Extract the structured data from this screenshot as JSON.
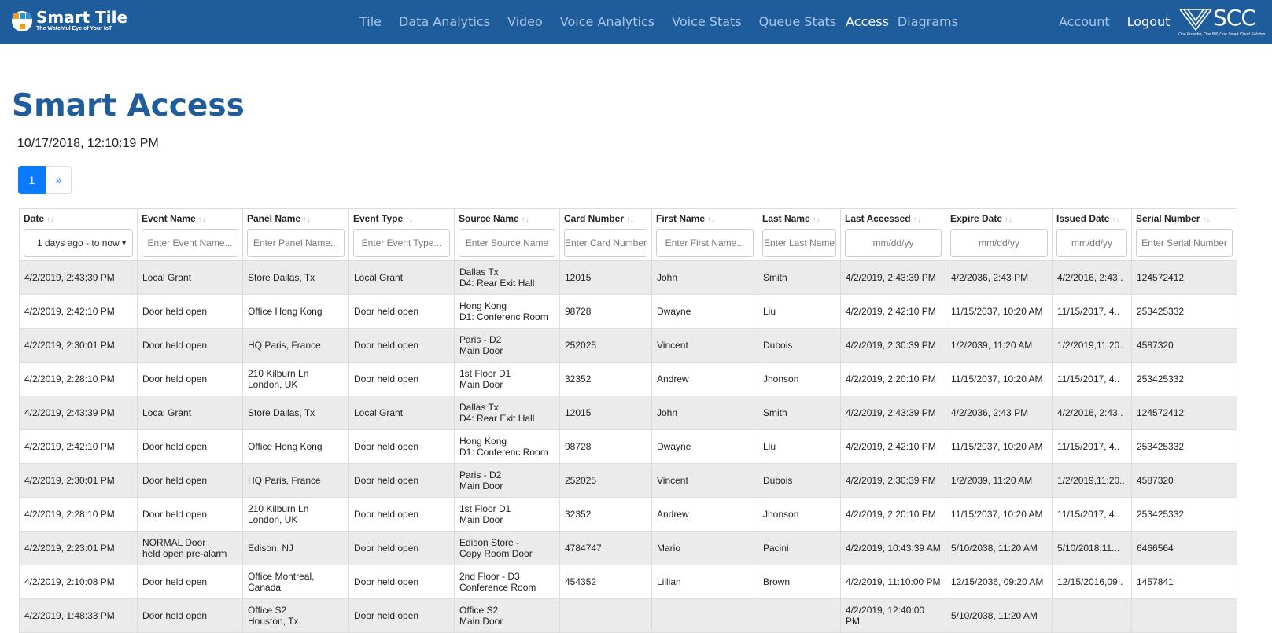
{
  "brand": {
    "name": "Smart Tile",
    "tagline": "The Watchful Eye of Your IoT"
  },
  "nav": {
    "links": [
      "Tile",
      "Data Analytics",
      "Video",
      "Voice Analytics",
      "Voice Stats",
      "Queue Stats",
      "Access",
      "Diagrams"
    ],
    "active": "Access",
    "account": "Account",
    "logout": "Logout"
  },
  "scc": {
    "name": "SCC",
    "tagline": "One Provider, One Bill, One Smart Cloud Solution"
  },
  "colors": {
    "nav_bg": "#1f5c9c",
    "title": "#1f5c9c",
    "page_active": "#0a7bff"
  },
  "page": {
    "title": "Smart Access",
    "timestamp": "10/17/2018, 12:10:19 PM"
  },
  "pagination": {
    "current": "1",
    "next": "»"
  },
  "table": {
    "columns": [
      "Date",
      "Event Name",
      "Panel Name",
      "Event Type",
      "Source Name",
      "Card Number",
      "First Name",
      "Last Name",
      "Last Accessed",
      "Expire Date",
      "Issued Date",
      "Serial Number"
    ],
    "filters": [
      "1 days ago - to now",
      "Enter Event Name...",
      "Enter Panel Name...",
      "Enter Event Type...",
      "Enter Source Name",
      "Enter Card Number",
      "Enter First Name...",
      "Enter Last Name",
      "mm/dd/yy",
      "mm/dd/yy",
      "mm/dd/yy",
      "Enter Serial Number"
    ],
    "rows": [
      [
        "4/2/2019, 2:43:39 PM",
        "Local Grant",
        "Store Dallas, Tx",
        "Local Grant",
        "Dallas Tx\nD4: Rear Exit Hall",
        "12015",
        "John",
        "Smith",
        "4/2/2019, 2:43:39 PM",
        "4/2/2036, 2:43 PM",
        "4/2/2016, 2:43..",
        "124572412"
      ],
      [
        "4/2/2019, 2:42:10 PM",
        "Door held open",
        "Office Hong Kong",
        "Door held open",
        "Hong Kong\nD1: Conferenc Room",
        "98728",
        "Dwayne",
        "Liu",
        "4/2/2019, 2:42:10 PM",
        "11/15/2037, 10:20 AM",
        "11/15/2017, 4..",
        "253425332"
      ],
      [
        "4/2/2019, 2:30:01 PM",
        "Door held open",
        "HQ Paris, France",
        "Door held open",
        "Paris - D2\nMain Door",
        "252025",
        "Vincent",
        "Dubois",
        "4/2/2019, 2:30:39 PM",
        "1/2/2039, 11:20 AM",
        "1/2/2019,11:20..",
        "4587320"
      ],
      [
        "4/2/2019, 2:28:10 PM",
        "Door held open",
        "210 Kilburn Ln\nLondon, UK",
        "Door held open",
        "1st Floor D1\nMain Door",
        "32352",
        "Andrew",
        "Jhonson",
        "4/2/2019, 2:20:10 PM",
        "11/15/2037, 10:20 AM",
        "11/15/2017, 4..",
        "253425332"
      ],
      [
        "4/2/2019, 2:43:39 PM",
        "Local Grant",
        "Store Dallas, Tx",
        "Local Grant",
        "Dallas Tx\nD4: Rear Exit Hall",
        "12015",
        "John",
        "Smith",
        "4/2/2019, 2:43:39 PM",
        "4/2/2036, 2:43 PM",
        "4/2/2016, 2:43..",
        "124572412"
      ],
      [
        "4/2/2019, 2:42:10 PM",
        "Door held open",
        "Office Hong Kong",
        "Door held open",
        "Hong Kong\nD1: Conferenc Room",
        "98728",
        "Dwayne",
        "Liu",
        "4/2/2019, 2:42:10 PM",
        "11/15/2037, 10:20 AM",
        "11/15/2017, 4..",
        "253425332"
      ],
      [
        "4/2/2019, 2:30:01 PM",
        "Door held open",
        "HQ Paris, France",
        "Door held open",
        "Paris - D2\nMain Door",
        "252025",
        "Vincent",
        "Dubois",
        "4/2/2019, 2:30:39 PM",
        "1/2/2039, 11:20 AM",
        "1/2/2019,11:20..",
        "4587320"
      ],
      [
        "4/2/2019, 2:28:10 PM",
        "Door held open",
        "210 Kilburn Ln\nLondon, UK",
        "Door held open",
        "1st Floor D1\nMain Door",
        "32352",
        "Andrew",
        "Jhonson",
        "4/2/2019, 2:20:10 PM",
        "11/15/2037, 10:20 AM",
        "11/15/2017, 4..",
        "253425332"
      ],
      [
        "4/2/2019, 2:23:01 PM",
        "NORMAL Door\nheld open pre-alarm",
        "Edison, NJ",
        "Door held open",
        "Edison Store -\nCopy Room Door",
        "4784747",
        "Mario",
        "Pacini",
        "4/2/2019, 10:43:39 AM",
        "5/10/2038, 11:20 AM",
        "5/10/2018,11...",
        "6466564"
      ],
      [
        "4/2/2019, 2:10:08 PM",
        "Door held open",
        "Office Montreal,\nCanada",
        "Door held open",
        "2nd Floor - D3\nConference Room",
        "454352",
        "Lillian",
        "Brown",
        "4/2/2019, 11:10:00 PM",
        "12/15/2036, 09:20 AM",
        "12/15/2016,09..",
        "1457841"
      ],
      [
        "4/2/2019, 1:48:33 PM",
        "Door held open",
        "Office S2\nHouston, Tx",
        "Door held open",
        "Office S2\nMain Door",
        "",
        "",
        "",
        "4/2/2019, 12:40:00 PM",
        "5/10/2038, 11:20 AM",
        "",
        ""
      ]
    ]
  }
}
